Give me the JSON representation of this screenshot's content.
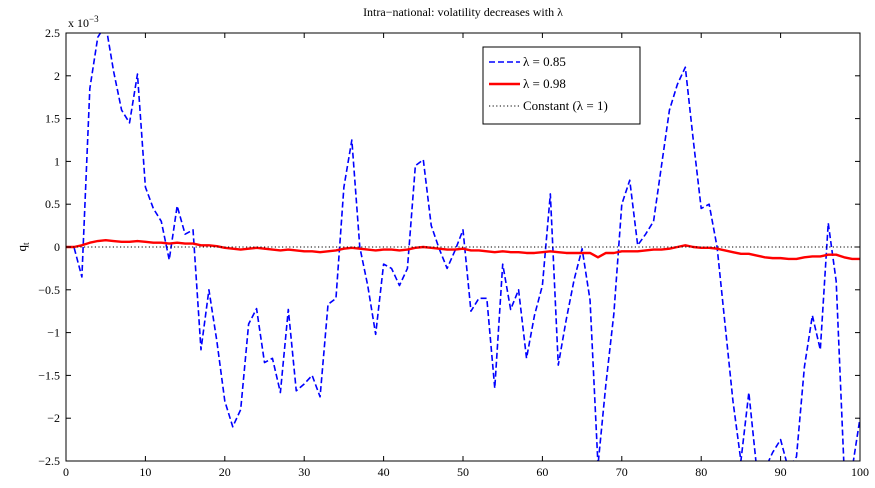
{
  "chart_data": {
    "type": "line",
    "title": "Intra−national: volatility decreases with λ",
    "xlabel": "",
    "ylabel": "q",
    "ylabel_subscript": "t",
    "y_exponent_label": "x 10",
    "y_exponent_power": "−3",
    "xlim": [
      0,
      100
    ],
    "ylim": [
      -2.5,
      2.5
    ],
    "x_ticks": [
      0,
      10,
      20,
      30,
      40,
      50,
      60,
      70,
      80,
      90,
      100
    ],
    "x_tick_labels": [
      "0",
      "10",
      "20",
      "30",
      "40",
      "50",
      "60",
      "70",
      "80",
      "90",
      "100"
    ],
    "y_ticks": [
      -2.5,
      -2,
      -1.5,
      -1,
      -0.5,
      0,
      0.5,
      1,
      1.5,
      2,
      2.5
    ],
    "y_tick_labels": [
      "−2.5",
      "−2",
      "−1.5",
      "−1",
      "−0.5",
      "0",
      "0.5",
      "1",
      "1.5",
      "2",
      "2.5"
    ],
    "grid": false,
    "legend_position": "top-right",
    "series": [
      {
        "name": "λ = 0.85",
        "color": "#0000ff",
        "style": "dashed",
        "x": [
          0,
          1,
          2,
          3,
          4,
          5,
          6,
          7,
          8,
          9,
          10,
          11,
          12,
          13,
          14,
          15,
          16,
          17,
          18,
          19,
          20,
          21,
          22,
          23,
          24,
          25,
          26,
          27,
          28,
          29,
          30,
          31,
          32,
          33,
          34,
          35,
          36,
          37,
          38,
          39,
          40,
          41,
          42,
          43,
          44,
          45,
          46,
          47,
          48,
          49,
          50,
          51,
          52,
          53,
          54,
          55,
          56,
          57,
          58,
          59,
          60,
          61,
          62,
          63,
          64,
          65,
          66,
          67,
          68,
          69,
          70,
          71,
          72,
          73,
          74,
          75,
          76,
          77,
          78,
          79,
          80,
          81,
          82,
          83,
          84,
          85,
          86,
          87,
          88,
          89,
          90,
          91,
          92,
          93,
          94,
          95,
          96,
          97,
          98,
          99,
          100
        ],
        "y": [
          0,
          0,
          -0.35,
          1.85,
          2.45,
          2.6,
          2.05,
          1.6,
          1.45,
          2.02,
          0.7,
          0.45,
          0.3,
          -0.15,
          0.48,
          0.15,
          0.2,
          -1.2,
          -0.5,
          -1.1,
          -1.8,
          -2.1,
          -1.9,
          -0.9,
          -0.72,
          -1.35,
          -1.3,
          -1.7,
          -0.73,
          -1.68,
          -1.6,
          -1.5,
          -1.75,
          -0.67,
          -0.6,
          0.7,
          1.25,
          0.0,
          -0.45,
          -1.02,
          -0.2,
          -0.25,
          -0.45,
          -0.25,
          0.95,
          1.02,
          0.25,
          -0.02,
          -0.25,
          -0.04,
          0.2,
          -0.75,
          -0.6,
          -0.6,
          -1.65,
          -0.2,
          -0.73,
          -0.5,
          -1.3,
          -0.8,
          -0.45,
          0.62,
          -1.38,
          -0.85,
          -0.38,
          -0.02,
          -0.62,
          -2.55,
          -1.6,
          -0.78,
          0.5,
          0.78,
          0.02,
          0.15,
          0.3,
          0.95,
          1.6,
          1.9,
          2.1,
          1.25,
          0.45,
          0.5,
          0.0,
          -0.9,
          -1.8,
          -2.5,
          -1.7,
          -2.6,
          -2.6,
          -2.4,
          -2.25,
          -2.6,
          -2.45,
          -1.4,
          -0.8,
          -1.2,
          0.28,
          -0.4,
          -2.6,
          -2.6,
          -2.0
        ]
      },
      {
        "name": "λ = 0.98",
        "color": "#ff0000",
        "style": "solid",
        "x": [
          0,
          1,
          2,
          3,
          4,
          5,
          6,
          7,
          8,
          9,
          10,
          11,
          12,
          13,
          14,
          15,
          16,
          17,
          18,
          19,
          20,
          21,
          22,
          23,
          24,
          25,
          26,
          27,
          28,
          29,
          30,
          31,
          32,
          33,
          34,
          35,
          36,
          37,
          38,
          39,
          40,
          41,
          42,
          43,
          44,
          45,
          46,
          47,
          48,
          49,
          50,
          51,
          52,
          53,
          54,
          55,
          56,
          57,
          58,
          59,
          60,
          61,
          62,
          63,
          64,
          65,
          66,
          67,
          68,
          69,
          70,
          71,
          72,
          73,
          74,
          75,
          76,
          77,
          78,
          79,
          80,
          81,
          82,
          83,
          84,
          85,
          86,
          87,
          88,
          89,
          90,
          91,
          92,
          93,
          94,
          95,
          96,
          97,
          98,
          99,
          100
        ],
        "y": [
          0,
          0,
          0.02,
          0.05,
          0.07,
          0.08,
          0.07,
          0.06,
          0.06,
          0.07,
          0.06,
          0.05,
          0.05,
          0.04,
          0.05,
          0.04,
          0.04,
          0.02,
          0.02,
          0.01,
          -0.01,
          -0.02,
          -0.03,
          -0.02,
          -0.01,
          -0.02,
          -0.03,
          -0.04,
          -0.03,
          -0.04,
          -0.05,
          -0.05,
          -0.06,
          -0.05,
          -0.04,
          -0.02,
          -0.01,
          -0.02,
          -0.03,
          -0.04,
          -0.03,
          -0.03,
          -0.04,
          -0.03,
          -0.01,
          0.0,
          -0.01,
          -0.02,
          -0.03,
          -0.03,
          -0.02,
          -0.04,
          -0.04,
          -0.05,
          -0.06,
          -0.05,
          -0.06,
          -0.06,
          -0.07,
          -0.07,
          -0.06,
          -0.05,
          -0.06,
          -0.07,
          -0.07,
          -0.07,
          -0.07,
          -0.12,
          -0.07,
          -0.07,
          -0.05,
          -0.05,
          -0.05,
          -0.04,
          -0.03,
          -0.03,
          -0.02,
          0.0,
          0.02,
          0.0,
          -0.01,
          -0.01,
          -0.02,
          -0.04,
          -0.06,
          -0.08,
          -0.08,
          -0.1,
          -0.12,
          -0.13,
          -0.13,
          -0.14,
          -0.14,
          -0.12,
          -0.11,
          -0.11,
          -0.09,
          -0.09,
          -0.12,
          -0.14,
          -0.14
        ]
      },
      {
        "name": "Constant (λ = 1)",
        "color": "#000000",
        "style": "dotted",
        "x": [
          0,
          100
        ],
        "y": [
          0,
          0
        ]
      }
    ]
  }
}
